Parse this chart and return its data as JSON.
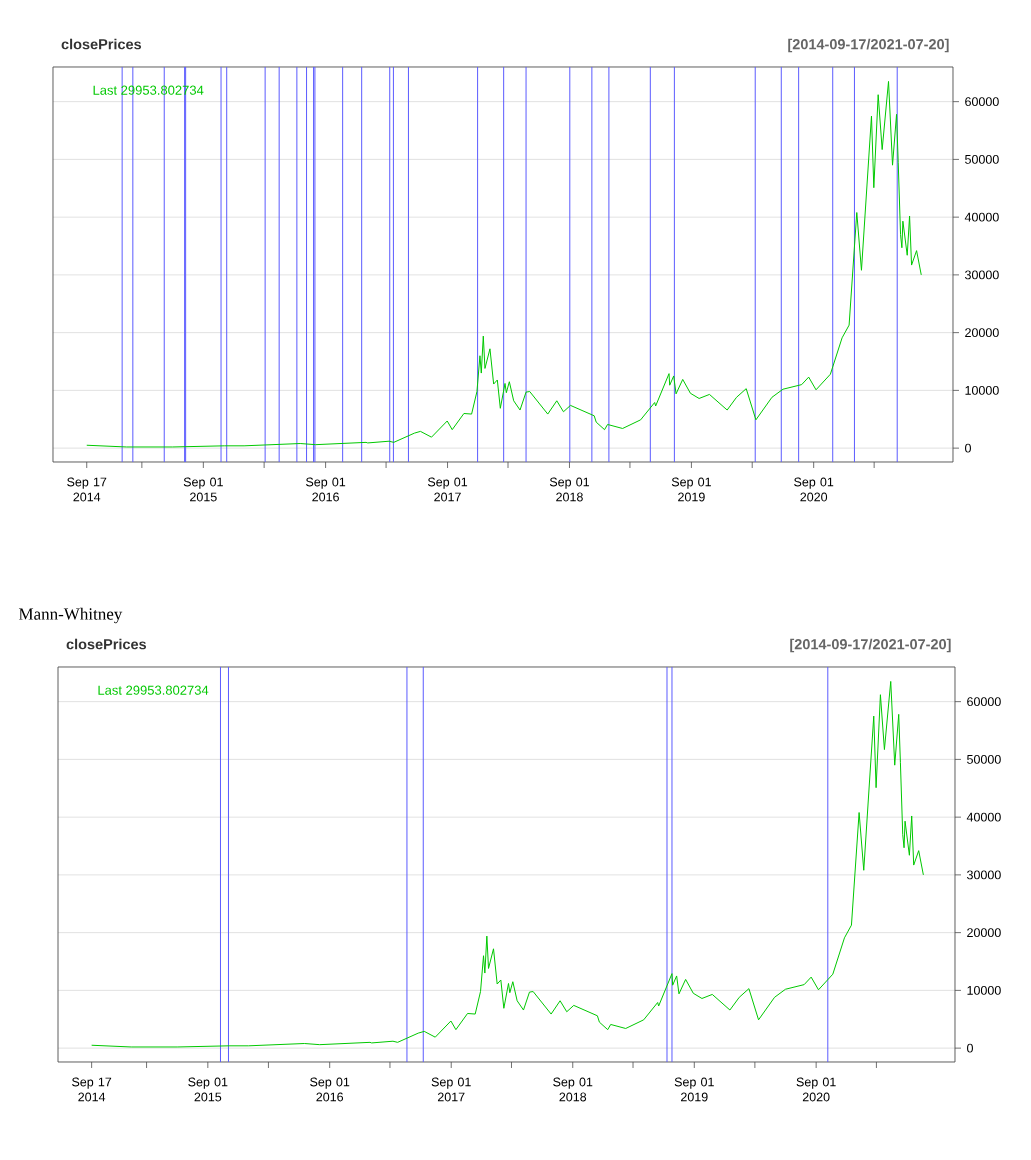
{
  "chart_data": [
    {
      "type": "line",
      "title": "closePrices",
      "subtitle": "[2014-09-17/2021-07-20]",
      "annotations": [
        "Last 29953.802734"
      ],
      "xlim": [
        "2014-06-08",
        "2021-10-23"
      ],
      "ylim": [
        -2400,
        66000
      ],
      "xticks": [
        {
          "value": "2014-09-17",
          "label": "Sep 17 2014"
        },
        {
          "value": "2015-03-01",
          "label": null
        },
        {
          "value": "2015-09-01",
          "label": "Sep 01 2015"
        },
        {
          "value": "2016-03-01",
          "label": null
        },
        {
          "value": "2016-09-01",
          "label": "Sep 01 2016"
        },
        {
          "value": "2017-03-01",
          "label": null
        },
        {
          "value": "2017-09-01",
          "label": "Sep 01 2017"
        },
        {
          "value": "2018-03-01",
          "label": null
        },
        {
          "value": "2018-09-01",
          "label": "Sep 01 2018"
        },
        {
          "value": "2019-03-01",
          "label": null
        },
        {
          "value": "2019-09-01",
          "label": "Sep 01 2019"
        },
        {
          "value": "2020-03-01",
          "label": null
        },
        {
          "value": "2020-09-01",
          "label": "Sep 01 2020"
        },
        {
          "value": "2021-03-01",
          "label": null
        }
      ],
      "yticks": [
        0,
        10000,
        20000,
        30000,
        40000,
        50000,
        60000
      ],
      "grid": "y",
      "x": [
        "2014-09-17",
        "2015-01-14",
        "2015-06-01",
        "2015-11-04",
        "2016-01-01",
        "2016-06-17",
        "2016-08-02",
        "2016-12-31",
        "2017-01-05",
        "2017-03-10",
        "2017-03-24",
        "2017-05-25",
        "2017-06-12",
        "2017-07-15",
        "2017-08-31",
        "2017-09-15",
        "2017-10-20",
        "2017-11-12",
        "2017-11-28",
        "2017-12-07",
        "2017-12-11",
        "2017-12-17",
        "2017-12-22",
        "2018-01-06",
        "2018-01-17",
        "2018-01-28",
        "2018-02-06",
        "2018-02-20",
        "2018-02-24",
        "2018-03-05",
        "2018-03-18",
        "2018-04-06",
        "2018-04-24",
        "2018-05-05",
        "2018-06-28",
        "2018-07-25",
        "2018-08-14",
        "2018-09-04",
        "2018-11-14",
        "2018-11-20",
        "2018-12-15",
        "2018-12-24",
        "2019-02-07",
        "2019-04-02",
        "2019-05-14",
        "2019-05-17",
        "2019-06-26",
        "2019-06-28",
        "2019-07-10",
        "2019-07-17",
        "2019-08-06",
        "2019-08-29",
        "2019-09-24",
        "2019-10-25",
        "2019-12-17",
        "2020-01-14",
        "2020-02-12",
        "2020-03-12",
        "2020-04-29",
        "2020-06-01",
        "2020-07-27",
        "2020-08-17",
        "2020-09-08",
        "2020-10-21",
        "2020-11-25",
        "2020-12-16",
        "2021-01-08",
        "2021-01-22",
        "2021-02-21",
        "2021-02-28",
        "2021-03-13",
        "2021-03-25",
        "2021-04-13",
        "2021-04-25",
        "2021-05-07",
        "2021-05-12",
        "2021-05-19",
        "2021-05-23",
        "2021-05-26",
        "2021-06-08",
        "2021-06-15",
        "2021-06-21",
        "2021-07-06",
        "2021-07-20"
      ],
      "series": [
        {
          "color": "#00c800",
          "values": [
            500,
            200,
            200,
            400,
            400,
            800,
            600,
            1000,
            900,
            1200,
            1000,
            2600,
            2900,
            1900,
            4700,
            3200,
            6000,
            5900,
            9800,
            16000,
            13000,
            19400,
            13800,
            17200,
            11100,
            11800,
            6900,
            11200,
            9600,
            11500,
            8200,
            6600,
            9700,
            9800,
            5900,
            8200,
            6300,
            7400,
            5600,
            4500,
            3200,
            4100,
            3400,
            4900,
            7900,
            7300,
            12900,
            10900,
            12500,
            9400,
            11900,
            9500,
            8600,
            9300,
            6600,
            8800,
            10300,
            4900,
            8800,
            10200,
            11000,
            12300,
            10100,
            12800,
            19100,
            21300,
            40800,
            30800,
            57500,
            45100,
            61200,
            51700,
            63500,
            49000,
            57800,
            49500,
            37000,
            34700,
            39300,
            33400,
            40200,
            31700,
            34200,
            30000
          ]
        }
      ],
      "ref_lines": [
        {
          "axis": "x",
          "value": "2015-01-01",
          "color": "#5a5aff"
        },
        {
          "axis": "x",
          "value": "2015-02-02",
          "color": "#5a5aff"
        },
        {
          "axis": "x",
          "value": "2015-05-07",
          "color": "#5a5aff"
        },
        {
          "axis": "x",
          "value": "2015-07-07",
          "color": "#5a5aff"
        },
        {
          "axis": "x",
          "value": "2015-07-10",
          "color": "#5a5aff"
        },
        {
          "axis": "x",
          "value": "2015-10-24",
          "color": "#5a5aff"
        },
        {
          "axis": "x",
          "value": "2015-11-10",
          "color": "#5a5aff"
        },
        {
          "axis": "x",
          "value": "2016-03-04",
          "color": "#5a5aff"
        },
        {
          "axis": "x",
          "value": "2016-04-15",
          "color": "#5a5aff"
        },
        {
          "axis": "x",
          "value": "2016-06-07",
          "color": "#5a5aff"
        },
        {
          "axis": "x",
          "value": "2016-07-06",
          "color": "#5a5aff"
        },
        {
          "axis": "x",
          "value": "2016-07-27",
          "color": "#5a5aff"
        },
        {
          "axis": "x",
          "value": "2016-07-31",
          "color": "#5a5aff"
        },
        {
          "axis": "x",
          "value": "2016-10-22",
          "color": "#5a5aff"
        },
        {
          "axis": "x",
          "value": "2016-12-18",
          "color": "#5a5aff"
        },
        {
          "axis": "x",
          "value": "2017-03-12",
          "color": "#5a5aff"
        },
        {
          "axis": "x",
          "value": "2017-03-23",
          "color": "#5a5aff"
        },
        {
          "axis": "x",
          "value": "2017-05-07",
          "color": "#5a5aff"
        },
        {
          "axis": "x",
          "value": "2017-11-30",
          "color": "#5a5aff"
        },
        {
          "axis": "x",
          "value": "2018-02-16",
          "color": "#5a5aff"
        },
        {
          "axis": "x",
          "value": "2018-04-24",
          "color": "#5a5aff"
        },
        {
          "axis": "x",
          "value": "2018-09-02",
          "color": "#5a5aff"
        },
        {
          "axis": "x",
          "value": "2018-11-07",
          "color": "#5a5aff"
        },
        {
          "axis": "x",
          "value": "2018-12-28",
          "color": "#5a5aff"
        },
        {
          "axis": "x",
          "value": "2019-05-01",
          "color": "#5a5aff"
        },
        {
          "axis": "x",
          "value": "2019-07-12",
          "color": "#5a5aff"
        },
        {
          "axis": "x",
          "value": "2020-03-10",
          "color": "#5a5aff"
        },
        {
          "axis": "x",
          "value": "2020-05-27",
          "color": "#5a5aff"
        },
        {
          "axis": "x",
          "value": "2020-07-18",
          "color": "#5a5aff"
        },
        {
          "axis": "x",
          "value": "2020-10-28",
          "color": "#5a5aff"
        },
        {
          "axis": "x",
          "value": "2021-01-01",
          "color": "#5a5aff"
        },
        {
          "axis": "x",
          "value": "2021-05-09",
          "color": "#5a5aff"
        }
      ]
    },
    {
      "type": "line",
      "title": "closePrices",
      "subtitle": "[2014-09-17/2021-07-20]",
      "annotations": [
        "Mann-Whitney",
        "Last 29953.802734"
      ],
      "xlim": [
        "2014-06-08",
        "2021-10-23"
      ],
      "ylim": [
        -2400,
        66000
      ],
      "xticks": [
        {
          "value": "2014-09-17",
          "label": "Sep 17 2014"
        },
        {
          "value": "2015-03-01",
          "label": null
        },
        {
          "value": "2015-09-01",
          "label": "Sep 01 2015"
        },
        {
          "value": "2016-03-01",
          "label": null
        },
        {
          "value": "2016-09-01",
          "label": "Sep 01 2016"
        },
        {
          "value": "2017-03-01",
          "label": null
        },
        {
          "value": "2017-09-01",
          "label": "Sep 01 2017"
        },
        {
          "value": "2018-03-01",
          "label": null
        },
        {
          "value": "2018-09-01",
          "label": "Sep 01 2018"
        },
        {
          "value": "2019-03-01",
          "label": null
        },
        {
          "value": "2019-09-01",
          "label": "Sep 01 2019"
        },
        {
          "value": "2020-03-01",
          "label": null
        },
        {
          "value": "2020-09-01",
          "label": "Sep 01 2020"
        },
        {
          "value": "2021-03-01",
          "label": null
        }
      ],
      "yticks": [
        0,
        10000,
        20000,
        30000,
        40000,
        50000,
        60000
      ],
      "grid": "y",
      "x": [
        "2014-09-17",
        "2015-01-14",
        "2015-06-01",
        "2015-11-04",
        "2016-01-01",
        "2016-06-17",
        "2016-08-02",
        "2016-12-31",
        "2017-01-05",
        "2017-03-10",
        "2017-03-24",
        "2017-05-25",
        "2017-06-12",
        "2017-07-15",
        "2017-08-31",
        "2017-09-15",
        "2017-10-20",
        "2017-11-12",
        "2017-11-28",
        "2017-12-07",
        "2017-12-11",
        "2017-12-17",
        "2017-12-22",
        "2018-01-06",
        "2018-01-17",
        "2018-01-28",
        "2018-02-06",
        "2018-02-20",
        "2018-02-24",
        "2018-03-05",
        "2018-03-18",
        "2018-04-06",
        "2018-04-24",
        "2018-05-05",
        "2018-06-28",
        "2018-07-25",
        "2018-08-14",
        "2018-09-04",
        "2018-11-14",
        "2018-11-20",
        "2018-12-15",
        "2018-12-24",
        "2019-02-07",
        "2019-04-02",
        "2019-05-14",
        "2019-05-17",
        "2019-06-26",
        "2019-06-28",
        "2019-07-10",
        "2019-07-17",
        "2019-08-06",
        "2019-08-29",
        "2019-09-24",
        "2019-10-25",
        "2019-12-17",
        "2020-01-14",
        "2020-02-12",
        "2020-03-12",
        "2020-04-29",
        "2020-06-01",
        "2020-07-27",
        "2020-08-17",
        "2020-09-08",
        "2020-10-21",
        "2020-11-25",
        "2020-12-16",
        "2021-01-08",
        "2021-01-22",
        "2021-02-21",
        "2021-02-28",
        "2021-03-13",
        "2021-03-25",
        "2021-04-13",
        "2021-04-25",
        "2021-05-07",
        "2021-05-12",
        "2021-05-19",
        "2021-05-23",
        "2021-05-26",
        "2021-06-08",
        "2021-06-15",
        "2021-06-21",
        "2021-07-06",
        "2021-07-20"
      ],
      "series": [
        {
          "color": "#00c800",
          "values": [
            500,
            200,
            200,
            400,
            400,
            800,
            600,
            1000,
            900,
            1200,
            1000,
            2600,
            2900,
            1900,
            4700,
            3200,
            6000,
            5900,
            9800,
            16000,
            13000,
            19400,
            13800,
            17200,
            11100,
            11800,
            6900,
            11200,
            9600,
            11500,
            8200,
            6600,
            9700,
            9800,
            5900,
            8200,
            6300,
            7400,
            5600,
            4500,
            3200,
            4100,
            3400,
            4900,
            7900,
            7300,
            12900,
            10900,
            12500,
            9400,
            11900,
            9500,
            8600,
            9300,
            6600,
            8800,
            10300,
            4900,
            8800,
            10200,
            11000,
            12300,
            10100,
            12800,
            19100,
            21300,
            40800,
            30800,
            57500,
            45100,
            61200,
            51700,
            63500,
            49000,
            57800,
            49500,
            37000,
            34700,
            39300,
            33400,
            40200,
            31700,
            34200,
            30000
          ]
        }
      ],
      "ref_lines": [
        {
          "axis": "x",
          "value": "2015-10-09",
          "color": "#5a5aff"
        },
        {
          "axis": "x",
          "value": "2015-11-02",
          "color": "#5a5aff"
        },
        {
          "axis": "x",
          "value": "2017-04-21",
          "color": "#5a5aff"
        },
        {
          "axis": "x",
          "value": "2017-06-09",
          "color": "#5a5aff"
        },
        {
          "axis": "x",
          "value": "2019-06-11",
          "color": "#5a5aff"
        },
        {
          "axis": "x",
          "value": "2019-06-26",
          "color": "#5a5aff"
        },
        {
          "axis": "x",
          "value": "2020-10-06",
          "color": "#5a5aff"
        }
      ]
    }
  ]
}
